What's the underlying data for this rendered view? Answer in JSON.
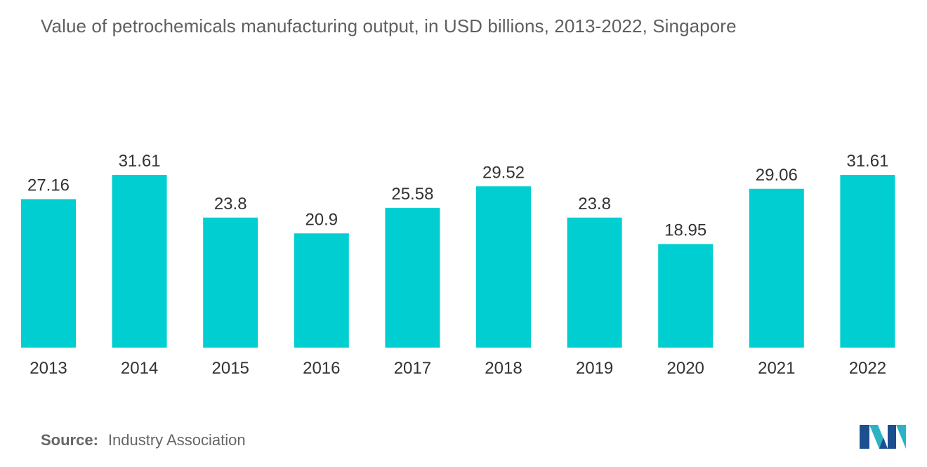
{
  "chart_data": {
    "type": "bar",
    "title": "Value of petrochemicals manufacturing output, in USD billions, 2013-2022, Singapore",
    "categories": [
      "2013",
      "2014",
      "2015",
      "2016",
      "2017",
      "2018",
      "2019",
      "2020",
      "2021",
      "2022"
    ],
    "values": [
      27.16,
      31.61,
      23.8,
      20.9,
      25.58,
      29.52,
      23.8,
      18.95,
      29.06,
      31.61
    ],
    "value_labels": [
      "27.16",
      "31.61",
      "23.8",
      "20.9",
      "25.58",
      "29.52",
      "23.8",
      "18.95",
      "29.06",
      "31.61"
    ],
    "xlabel": "",
    "ylabel": "",
    "ylim": [
      0,
      31.61
    ],
    "grid": false,
    "legend": "none",
    "bar_color": "#00ced1"
  },
  "source": {
    "label": "Source:",
    "text": "Industry Association"
  },
  "logo": {
    "icon": "mordor-intelligence-logo-icon",
    "colors": [
      "#1d4e8f",
      "#2bb3c4"
    ]
  }
}
